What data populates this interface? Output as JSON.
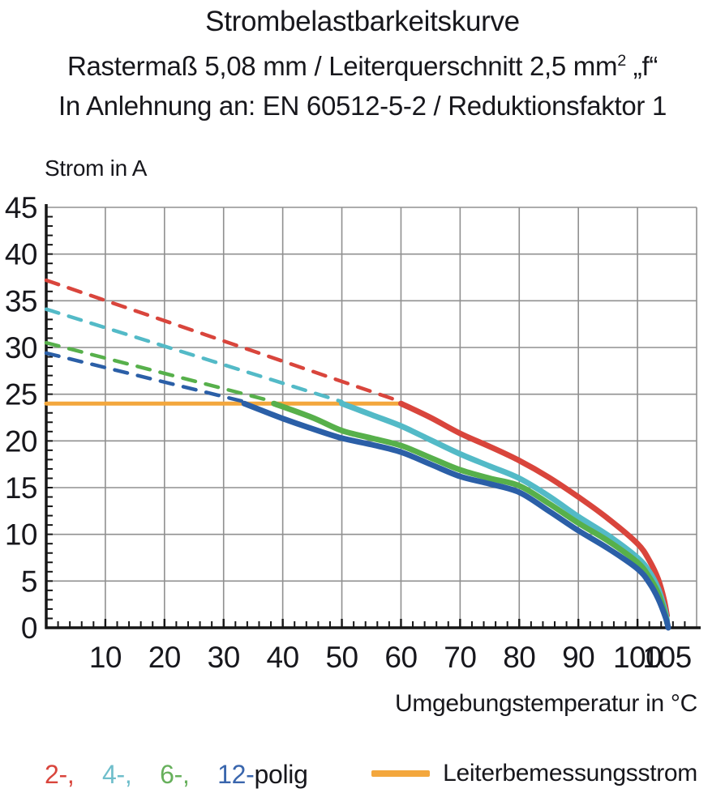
{
  "title": {
    "line1": "Strombelastbarkeitskurve",
    "line2_main": "Rastermaß 5,08 mm / Leiterquerschnitt 2,5 mm",
    "line2_sup": "2",
    "line2_quote": " „f“",
    "line3": "In Anlehnung an: EN 60512-5-2 / Reduktionsfaktor 1"
  },
  "chart_data": {
    "type": "line",
    "ylabel": "Strom in A",
    "xlabel": "Umgebungstemperatur in °C",
    "xlim": [
      0,
      110
    ],
    "ylim": [
      0,
      45
    ],
    "x_major_ticks": [
      10,
      20,
      30,
      40,
      50,
      60,
      70,
      80,
      90,
      100,
      105
    ],
    "x_gridlines": [
      10,
      20,
      30,
      40,
      50,
      60,
      70,
      80,
      90,
      100,
      110
    ],
    "y_ticks": [
      0,
      5,
      10,
      15,
      20,
      25,
      30,
      35,
      40,
      45
    ],
    "x_minor_step": 2,
    "y_minor_step": 1,
    "grid": true,
    "grid_color": "#909090",
    "axis_color": "#161616",
    "series": [
      {
        "name": "Leiterbemessungsstrom",
        "color": "#f3a73d",
        "style": "solid",
        "width": 5,
        "points": [
          [
            0,
            24
          ],
          [
            60,
            24
          ]
        ]
      },
      {
        "name": "2-polig-gestrichelt",
        "color": "#d9453c",
        "style": "dashed",
        "width": 4.5,
        "points": [
          [
            0,
            37.2
          ],
          [
            60,
            24.2
          ]
        ]
      },
      {
        "name": "4-polig-gestrichelt",
        "color": "#53bac7",
        "style": "dashed",
        "width": 4.5,
        "points": [
          [
            0,
            34.1
          ],
          [
            50,
            24.2
          ]
        ]
      },
      {
        "name": "6-polig-gestrichelt",
        "color": "#57b04b",
        "style": "dashed",
        "width": 4.5,
        "points": [
          [
            0,
            30.5
          ],
          [
            38.5,
            24.2
          ]
        ]
      },
      {
        "name": "12-polig-gestrichelt",
        "color": "#2b5fa7",
        "style": "dashed",
        "width": 4.5,
        "points": [
          [
            0,
            29.4
          ],
          [
            33.5,
            24.2
          ]
        ]
      },
      {
        "name": "2-polig",
        "color": "#d9453c",
        "style": "solid",
        "width": 7,
        "points": [
          [
            60,
            24
          ],
          [
            65,
            22.5
          ],
          [
            70,
            20.8
          ],
          [
            75,
            19.4
          ],
          [
            80,
            17.9
          ],
          [
            85,
            16.1
          ],
          [
            90,
            14.0
          ],
          [
            95,
            11.7
          ],
          [
            100,
            9.0
          ],
          [
            102,
            7.2
          ],
          [
            103.5,
            5.2
          ],
          [
            104.5,
            3.0
          ],
          [
            105,
            1.3
          ]
        ]
      },
      {
        "name": "4-polig",
        "color": "#53bac7",
        "style": "solid",
        "width": 7,
        "points": [
          [
            50,
            24
          ],
          [
            55,
            22.8
          ],
          [
            60,
            21.6
          ],
          [
            65,
            20.1
          ],
          [
            70,
            18.6
          ],
          [
            75,
            17.3
          ],
          [
            80,
            16.0
          ],
          [
            85,
            14.1
          ],
          [
            90,
            11.9
          ],
          [
            95,
            9.9
          ],
          [
            100,
            7.5
          ],
          [
            102,
            6.0
          ],
          [
            103.5,
            4.2
          ],
          [
            104.6,
            2.0
          ],
          [
            105,
            0.8
          ]
        ]
      },
      {
        "name": "6-polig",
        "color": "#57b04b",
        "style": "solid",
        "width": 7,
        "points": [
          [
            38.5,
            24
          ],
          [
            45,
            22.5
          ],
          [
            50,
            21.1
          ],
          [
            55,
            20.3
          ],
          [
            60,
            19.5
          ],
          [
            65,
            18.2
          ],
          [
            70,
            16.9
          ],
          [
            75,
            16.0
          ],
          [
            80,
            15.2
          ],
          [
            85,
            13.3
          ],
          [
            90,
            11.2
          ],
          [
            95,
            9.3
          ],
          [
            100,
            7.0
          ],
          [
            102,
            5.4
          ],
          [
            103.5,
            3.7
          ],
          [
            104.6,
            1.6
          ],
          [
            105,
            0.5
          ]
        ]
      },
      {
        "name": "12-polig",
        "color": "#2b5fa7",
        "style": "solid",
        "width": 7,
        "points": [
          [
            33.5,
            24
          ],
          [
            40,
            22.4
          ],
          [
            45,
            21.3
          ],
          [
            50,
            20.3
          ],
          [
            55,
            19.6
          ],
          [
            60,
            18.8
          ],
          [
            65,
            17.5
          ],
          [
            70,
            16.2
          ],
          [
            75,
            15.4
          ],
          [
            80,
            14.5
          ],
          [
            85,
            12.5
          ],
          [
            90,
            10.4
          ],
          [
            95,
            8.5
          ],
          [
            100,
            6.3
          ],
          [
            102,
            4.8
          ],
          [
            103.5,
            3.1
          ],
          [
            104.8,
            1.0
          ],
          [
            105.2,
            0
          ]
        ]
      }
    ]
  },
  "legend": {
    "poles": [
      {
        "label": "2-,",
        "color": "#d9453c"
      },
      {
        "label": "4-,",
        "color": "#6fbecb"
      },
      {
        "label": "6-,",
        "color": "#67b05c"
      },
      {
        "label": "12-",
        "color": "#3a66ad"
      }
    ],
    "poles_suffix": "polig",
    "rated_current_label": "Leiterbemessungsstrom",
    "rated_current_color": "#f3a73d"
  }
}
